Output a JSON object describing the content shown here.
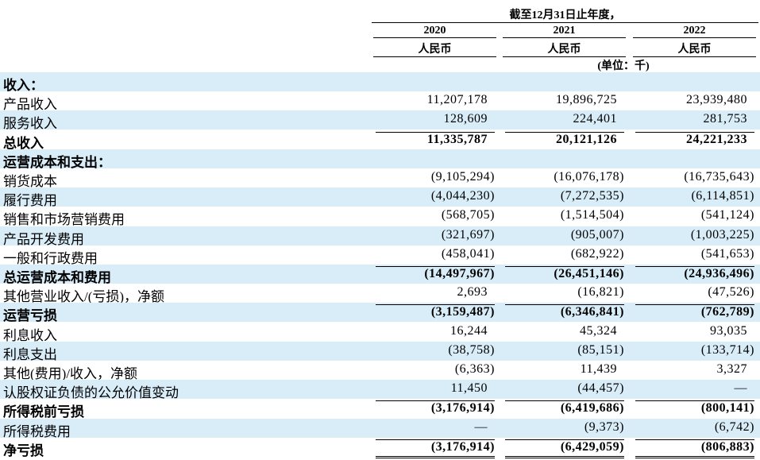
{
  "header": {
    "period": "截至12月31日止年度，",
    "years": [
      "2020",
      "2021",
      "2022"
    ],
    "currency": [
      "人民币",
      "人民币",
      "人民币"
    ],
    "unit": "(单位：千)"
  },
  "table": {
    "rows": [
      [
        "收入："
      ],
      [
        "产品收入",
        "11,207,178",
        "19,896,725",
        "23,939,480"
      ],
      [
        "服务收入",
        "128,609",
        "224,401",
        "281,753"
      ],
      [
        "总收入",
        "11,335,787",
        "20,121,126",
        "24,221,233"
      ],
      [
        "运营成本和支出："
      ],
      [
        "销货成本",
        "(9,105,294)",
        "(16,076,178)",
        "(16,735,643)"
      ],
      [
        "履行费用",
        "(4,044,230)",
        "(7,272,535)",
        "(6,114,851)"
      ],
      [
        "销售和市场营销费用",
        "(568,705)",
        "(1,514,504)",
        "(541,124)"
      ],
      [
        "产品开发费用",
        "(321,697)",
        "(905,007)",
        "(1,003,225)"
      ],
      [
        "一般和行政费用",
        "(458,041)",
        "(682,922)",
        "(541,653)"
      ],
      [
        "总运营成本和费用",
        "(14,497,967)",
        "(26,451,146)",
        "(24,936,496)"
      ],
      [
        "其他营业收入/(亏损)，净额",
        "2,693",
        "(16,821)",
        "(47,526)"
      ],
      [
        "运营亏损",
        "(3,159,487)",
        "(6,346,841)",
        "(762,789)"
      ],
      [
        "利息收入",
        "16,244",
        "45,324",
        "93,035"
      ],
      [
        "利息支出",
        "(38,758)",
        "(85,151)",
        "(133,714)"
      ],
      [
        "其他(费用)/收入，净额",
        "(6,363)",
        "11,439",
        "3,327"
      ],
      [
        "认股权证负债的公允价值变动",
        "11,450",
        "(44,457)",
        "—"
      ],
      [
        "所得税前亏损",
        "(3,176,914)",
        "(6,419,686)",
        "(800,141)"
      ],
      [
        "所得税费用",
        "—",
        "(9,373)",
        "(6,742)"
      ],
      [
        "净亏损",
        "(3,176,914)",
        "(6,429,059)",
        "(806,883)"
      ]
    ]
  }
}
